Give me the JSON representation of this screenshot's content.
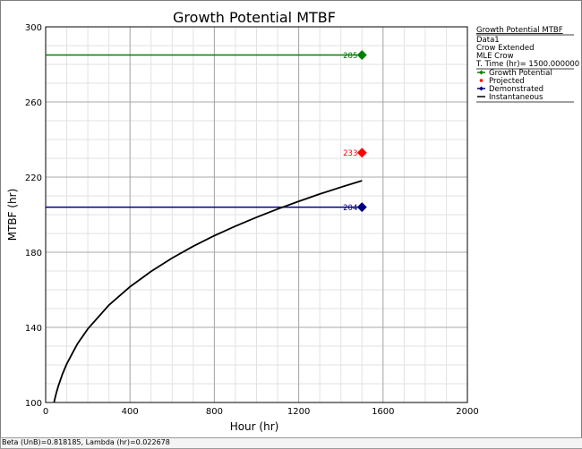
{
  "window": {
    "border_color": "#7f7f7f"
  },
  "status_bar": {
    "text": "Beta (UnB)=0.818185, Lambda (hr)=0.022678"
  },
  "legend": {
    "title": "Growth Potential MTBF",
    "info_lines": [
      "Data1",
      "Crow Extended",
      "MLE Crow",
      "T. Time (hr)= 1500.000000"
    ],
    "entries": [
      {
        "label": "Growth Potential",
        "color": "#008000",
        "marker": "diamond"
      },
      {
        "label": "Projected",
        "color": "#ff0000",
        "marker": "dot"
      },
      {
        "label": "Demonstrated",
        "color": "#000080",
        "marker": "diamond"
      },
      {
        "label": "Instantaneous",
        "color": "#000000",
        "marker": "none"
      }
    ]
  },
  "chart_data": {
    "type": "line",
    "title": "Growth Potential MTBF",
    "xlabel": "Hour (hr)",
    "ylabel": "MTBF (hr)",
    "xlim": [
      0,
      2000
    ],
    "ylim": [
      100,
      300
    ],
    "xticks": [
      0,
      400,
      800,
      1200,
      1600,
      2000
    ],
    "yticks": [
      100,
      140,
      180,
      220,
      260,
      300
    ],
    "x_tick_labels": [
      "0",
      "400",
      "800",
      "1200",
      "1600",
      "2000"
    ],
    "y_tick_labels": [
      "100",
      "140",
      "180",
      "220",
      "260",
      "300"
    ],
    "grid": true,
    "legend_position": "right",
    "series": [
      {
        "name": "Growth Potential",
        "color": "#008000",
        "x": [
          0,
          1500
        ],
        "y": [
          285,
          285
        ],
        "point_label": "285"
      },
      {
        "name": "Projected",
        "color": "#ff0000",
        "x": [
          1500
        ],
        "y": [
          233
        ],
        "point_label": "233"
      },
      {
        "name": "Demonstrated",
        "color": "#000080",
        "x": [
          0,
          1500
        ],
        "y": [
          204,
          204
        ],
        "point_label": "204"
      },
      {
        "name": "Instantaneous",
        "color": "#000000",
        "x": [
          40,
          50,
          60,
          80,
          100,
          150,
          200,
          300,
          400,
          500,
          600,
          700,
          800,
          900,
          1000,
          1100,
          1200,
          1300,
          1400,
          1500
        ],
        "y": [
          100.2,
          104.9,
          108.7,
          115.2,
          120.5,
          131.1,
          139.2,
          151.8,
          161.6,
          169.8,
          176.9,
          183.2,
          188.8,
          193.9,
          198.6,
          203.0,
          207.1,
          211.0,
          214.6,
          218.1
        ]
      }
    ]
  }
}
